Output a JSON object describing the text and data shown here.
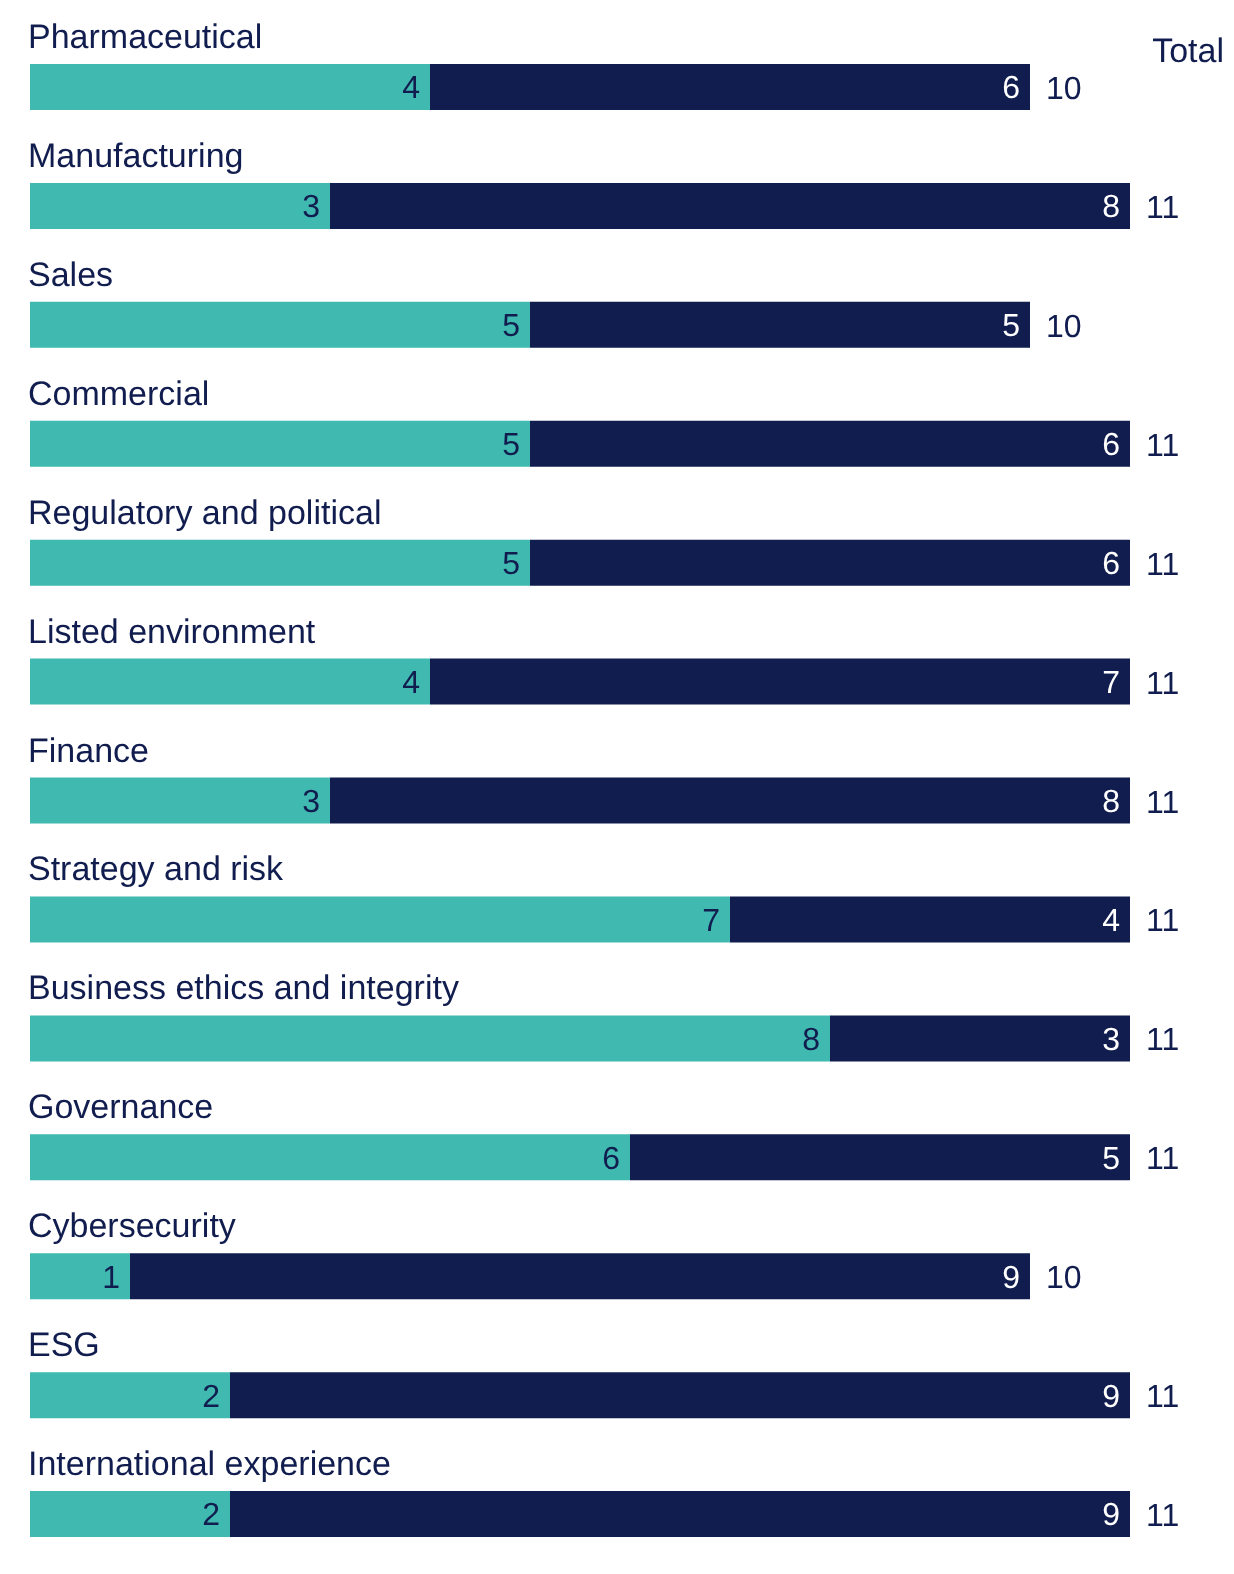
{
  "chart_data": {
    "type": "bar",
    "orientation": "horizontal",
    "stacked": true,
    "categories": [
      "Pharmaceutical",
      "Manufacturing",
      "Sales",
      "Commercial",
      "Regulatory and political",
      "Listed environment",
      "Finance",
      "Strategy and risk",
      "Business ethics and integrity",
      "Governance",
      "Cybersecurity",
      "ESG",
      "International experience"
    ],
    "series": [
      {
        "color": "#40b9b0",
        "values": [
          4,
          3,
          5,
          5,
          5,
          4,
          3,
          7,
          8,
          6,
          1,
          2,
          2
        ]
      },
      {
        "color": "#111d4e",
        "values": [
          6,
          8,
          5,
          6,
          6,
          7,
          8,
          4,
          3,
          5,
          9,
          9,
          9
        ]
      }
    ],
    "xlim": [
      0,
      11
    ],
    "data_labels": true,
    "totals": [
      "10",
      "11",
      "10",
      "11",
      "11",
      "11",
      "11",
      "11",
      "11",
      "11",
      "10",
      "11",
      "11"
    ],
    "annotations": [
      "Total"
    ]
  }
}
